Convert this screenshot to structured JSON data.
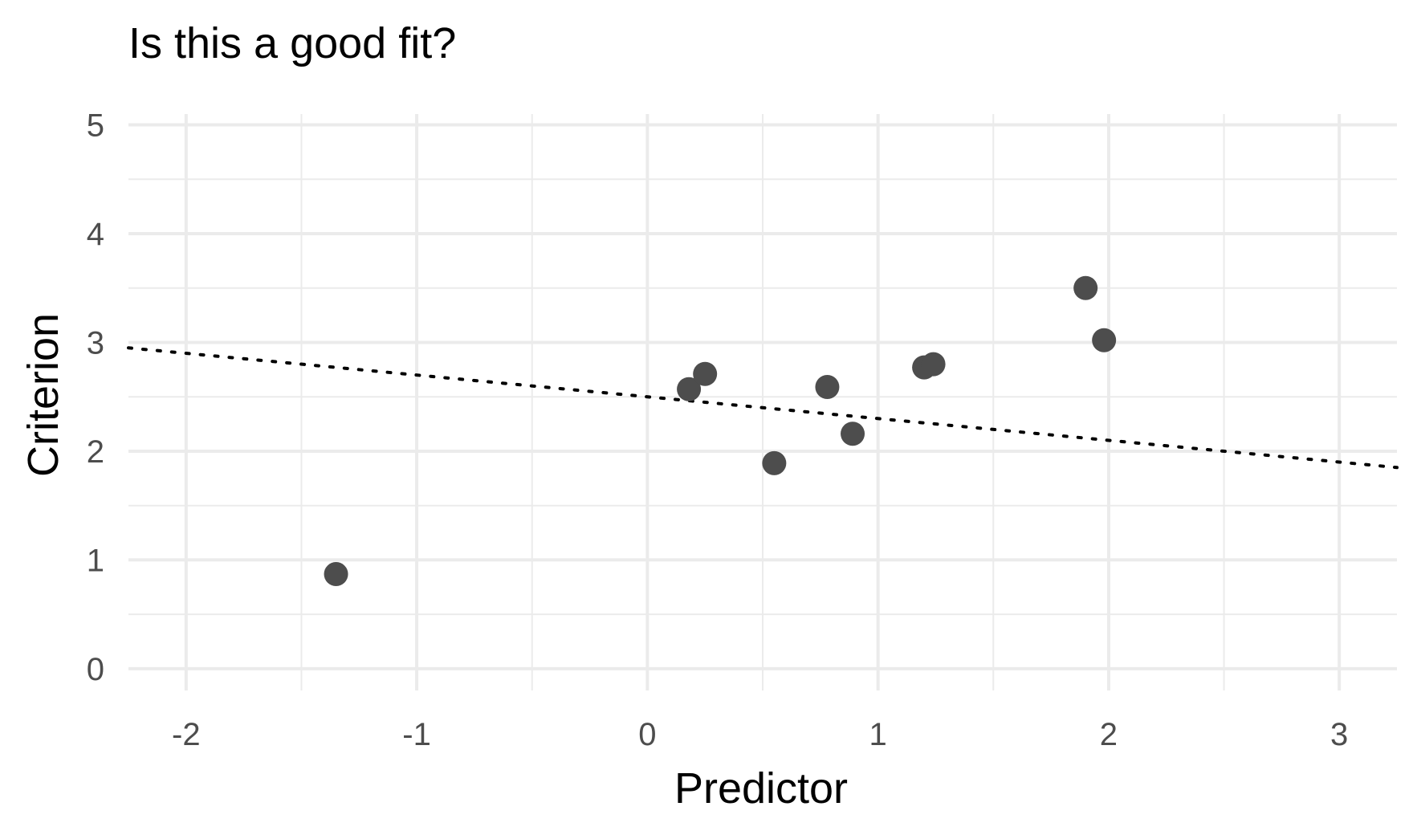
{
  "chart_data": {
    "type": "scatter",
    "title": "Is this a good fit?",
    "xlabel": "Predictor",
    "ylabel": "Criterion",
    "xlim": [
      -2.25,
      3.25
    ],
    "ylim": [
      -0.2,
      5.1
    ],
    "x_ticks": [
      -2,
      -1,
      0,
      1,
      2,
      3
    ],
    "x_tick_labels": [
      "-2",
      "-1",
      "0",
      "1",
      "2",
      "3"
    ],
    "y_ticks": [
      0,
      1,
      2,
      3,
      4,
      5
    ],
    "y_tick_labels": [
      "0",
      "1",
      "2",
      "3",
      "4",
      "5"
    ],
    "grid": true,
    "point_color": "#4d4d4d",
    "grid_color": "#ebebeb",
    "points": [
      {
        "x": -1.35,
        "y": 0.87
      },
      {
        "x": 0.18,
        "y": 2.57
      },
      {
        "x": 0.25,
        "y": 2.71
      },
      {
        "x": 0.55,
        "y": 1.89
      },
      {
        "x": 0.78,
        "y": 2.59
      },
      {
        "x": 0.89,
        "y": 2.16
      },
      {
        "x": 1.2,
        "y": 2.77
      },
      {
        "x": 1.24,
        "y": 2.8
      },
      {
        "x": 1.9,
        "y": 3.5
      },
      {
        "x": 1.98,
        "y": 3.02
      }
    ],
    "fit_line": {
      "intercept": 2.5,
      "slope": -0.2,
      "style": "dotted",
      "color": "#000000"
    }
  }
}
